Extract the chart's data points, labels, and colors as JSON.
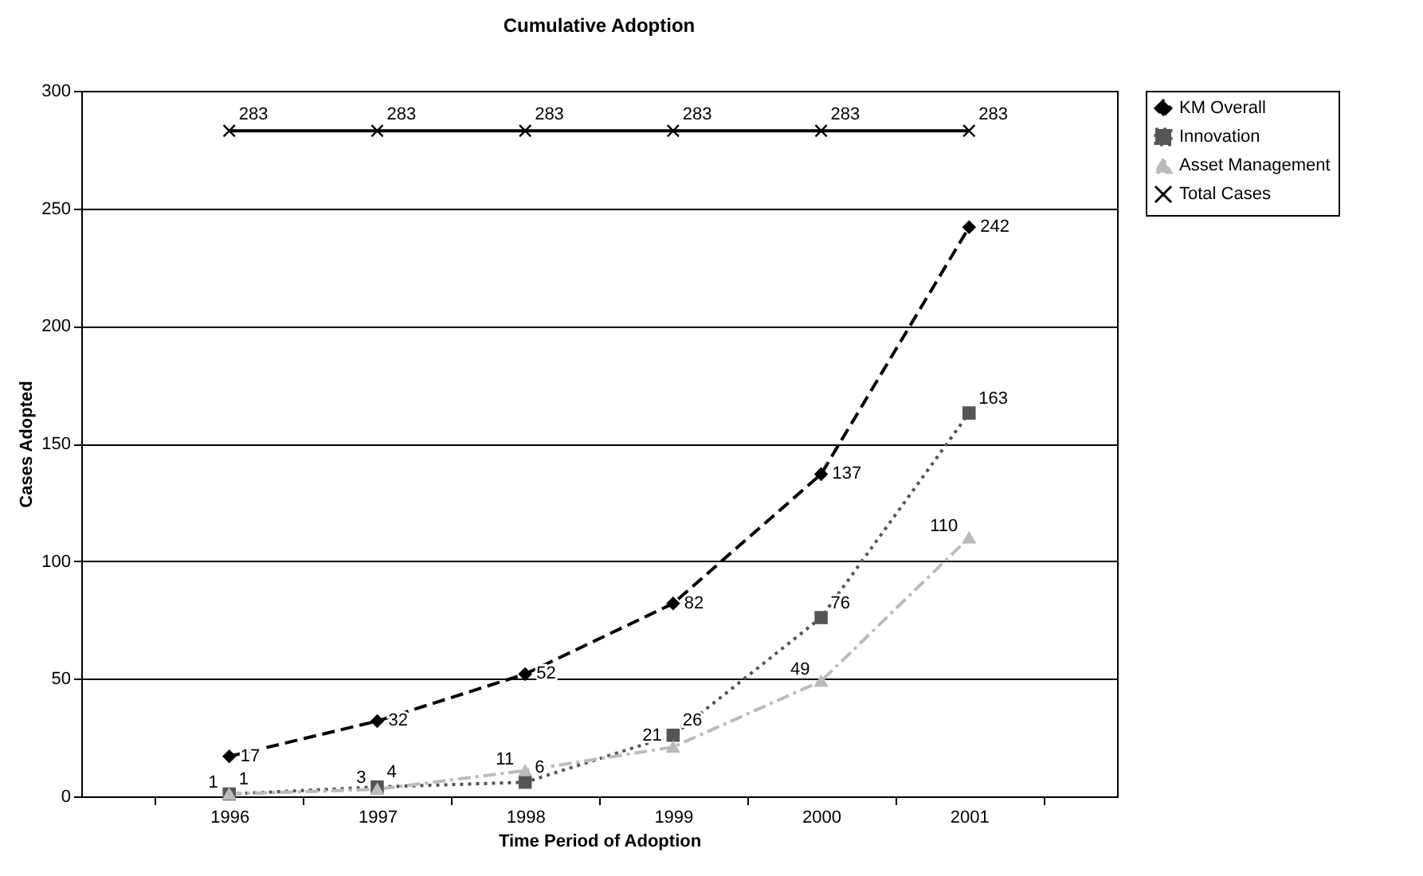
{
  "chart_data": {
    "type": "line",
    "title": "Cumulative Adoption",
    "xlabel": "Time Period of Adoption",
    "ylabel": "Cases Adopted",
    "categories": [
      "1996",
      "1997",
      "1998",
      "1999",
      "2000",
      "2001"
    ],
    "series": [
      {
        "name": "KM Overall",
        "color": "#000000",
        "marker": "diamond",
        "line_style": "dashed",
        "values": [
          17,
          32,
          52,
          82,
          137,
          242
        ]
      },
      {
        "name": "Innovation",
        "color": "#555555",
        "marker": "square",
        "line_style": "dotted",
        "values": [
          1,
          4,
          6,
          26,
          76,
          163
        ]
      },
      {
        "name": "Asset Management",
        "color": "#bbbbbb",
        "marker": "triangle",
        "line_style": "dashdot",
        "values": [
          1,
          3,
          11,
          21,
          49,
          110
        ]
      },
      {
        "name": "Total Cases",
        "color": "#000000",
        "marker": "cross",
        "line_style": "solid",
        "values": [
          283,
          283,
          283,
          283,
          283,
          283
        ]
      }
    ],
    "ylim": [
      0,
      300
    ],
    "yticks": [
      0,
      50,
      100,
      150,
      200,
      250,
      300
    ],
    "grid": "y",
    "legend": "right",
    "data_labels": true
  }
}
